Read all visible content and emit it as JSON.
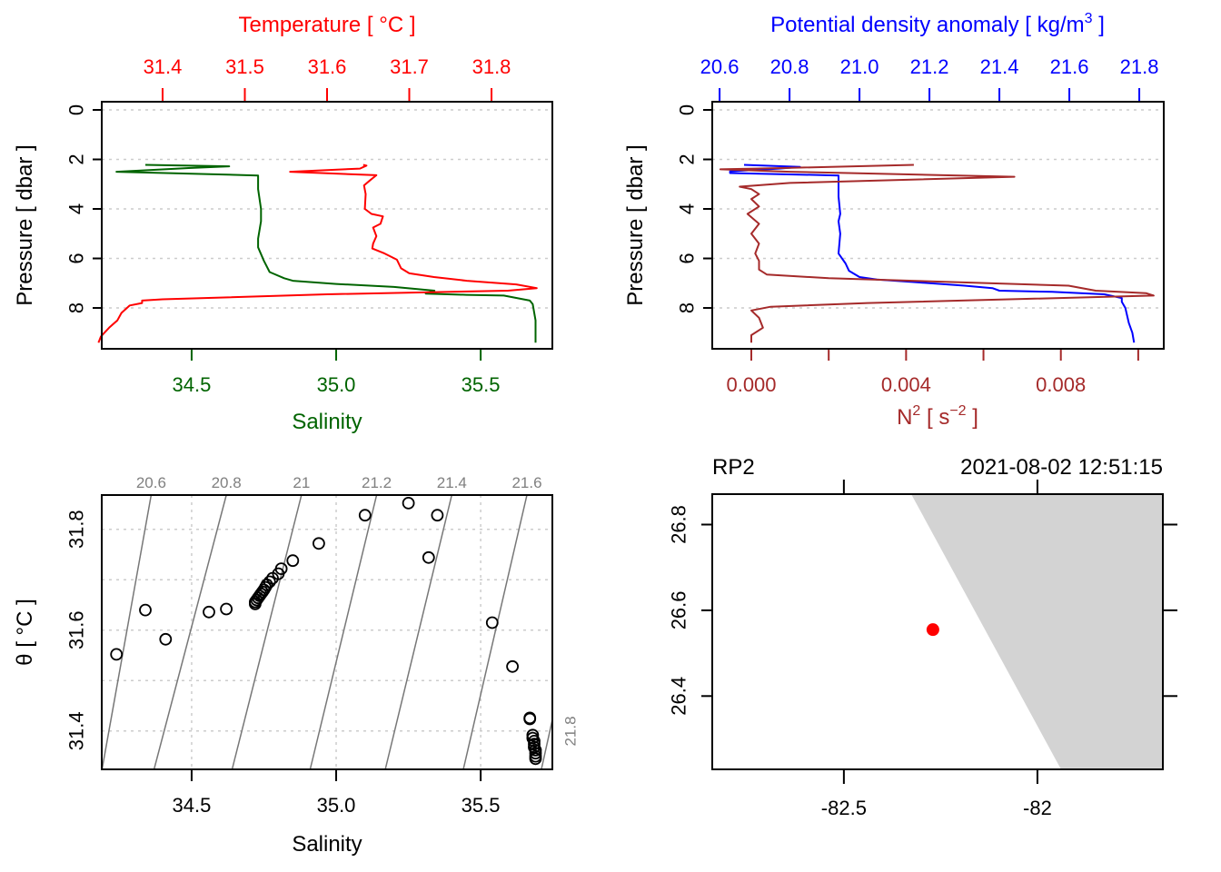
{
  "chart_data": [
    {
      "id": "ts-profile",
      "type": "line",
      "title": "",
      "ylabel": "Pressure [ dbar ]",
      "ylim": [
        9.65,
        -0.33
      ],
      "yticks": [
        0,
        2,
        4,
        6,
        8
      ],
      "grid": "horizontal-dotted",
      "bottom_axis": {
        "label": "Salinity",
        "color": "#006400",
        "lim": [
          34.189,
          35.748
        ],
        "ticks": [
          34.5,
          35.0,
          35.5
        ],
        "tick_labels": [
          "34.5",
          "35.0",
          "35.5"
        ]
      },
      "top_axis": {
        "label": "Temperature [ °C ]",
        "color": "#ff0000",
        "lim": [
          31.326,
          31.874
        ],
        "ticks": [
          31.4,
          31.5,
          31.6,
          31.7,
          31.8
        ],
        "tick_labels": [
          "31.4",
          "31.5",
          "31.6",
          "31.7",
          "31.8"
        ]
      },
      "series": [
        {
          "name": "Salinity",
          "axis": "bottom",
          "color": "#006400",
          "points": [
            [
              34.34,
              2.22
            ],
            [
              34.63,
              2.28
            ],
            [
              34.49,
              2.35
            ],
            [
              34.24,
              2.5
            ],
            [
              34.73,
              2.65
            ],
            [
              34.73,
              3.2
            ],
            [
              34.74,
              4.0
            ],
            [
              34.74,
              4.5
            ],
            [
              34.73,
              5.2
            ],
            [
              34.73,
              5.55
            ],
            [
              34.75,
              6.1
            ],
            [
              34.77,
              6.55
            ],
            [
              34.82,
              6.8
            ],
            [
              34.85,
              6.9
            ],
            [
              35.0,
              7.03
            ],
            [
              35.2,
              7.15
            ],
            [
              35.34,
              7.3
            ],
            [
              35.31,
              7.42
            ],
            [
              35.45,
              7.47
            ],
            [
              35.58,
              7.5
            ],
            [
              35.67,
              7.7
            ],
            [
              35.68,
              7.85
            ],
            [
              35.69,
              8.5
            ],
            [
              35.69,
              9.4
            ]
          ]
        },
        {
          "name": "Temperature",
          "axis": "top",
          "color": "#ff0000",
          "points": [
            [
              31.644,
              2.22
            ],
            [
              31.648,
              2.25
            ],
            [
              31.64,
              2.37
            ],
            [
              31.555,
              2.5
            ],
            [
              31.66,
              2.64
            ],
            [
              31.652,
              2.85
            ],
            [
              31.645,
              3.05
            ],
            [
              31.647,
              3.4
            ],
            [
              31.646,
              4.0
            ],
            [
              31.654,
              4.2
            ],
            [
              31.668,
              4.3
            ],
            [
              31.665,
              4.6
            ],
            [
              31.656,
              4.75
            ],
            [
              31.66,
              5.1
            ],
            [
              31.656,
              5.4
            ],
            [
              31.655,
              5.6
            ],
            [
              31.67,
              5.8
            ],
            [
              31.685,
              6.05
            ],
            [
              31.69,
              6.4
            ],
            [
              31.7,
              6.6
            ],
            [
              31.73,
              6.75
            ],
            [
              31.77,
              6.9
            ],
            [
              31.83,
              7.05
            ],
            [
              31.855,
              7.2
            ],
            [
              31.82,
              7.3
            ],
            [
              31.6,
              7.45
            ],
            [
              31.4,
              7.65
            ],
            [
              31.375,
              7.7
            ],
            [
              31.375,
              7.8
            ],
            [
              31.36,
              7.9
            ],
            [
              31.35,
              8.2
            ],
            [
              31.345,
              8.5
            ],
            [
              31.335,
              8.8
            ],
            [
              31.325,
              9.15
            ],
            [
              31.322,
              9.4
            ]
          ]
        }
      ]
    },
    {
      "id": "density-n2-profile",
      "type": "line",
      "title": "",
      "ylabel": "Pressure [ dbar ]",
      "ylim": [
        9.65,
        -0.33
      ],
      "yticks": [
        0,
        2,
        4,
        6,
        8
      ],
      "grid": "horizontal-dotted",
      "bottom_axis": {
        "label": "N² [ s⁻² ]",
        "label_main": "N",
        "label_sup": "2",
        "label_mid": " [ s",
        "label_sup2": "−2",
        "label_end": " ]",
        "color": "#a52a2a",
        "lim": [
          -0.00101,
          0.01066
        ],
        "ticks": [
          0.0,
          0.002,
          0.004,
          0.006,
          0.008,
          0.01
        ],
        "tick_labels": [
          "0.000",
          "",
          "0.004",
          "",
          "0.008",
          ""
        ]
      },
      "top_axis": {
        "label": "Potential density anomaly [ kg/m³ ]",
        "label_main": "Potential density anomaly [ kg/m",
        "label_sup": "3",
        "label_end": " ]",
        "color": "#0000ff",
        "lim": [
          20.579,
          21.87
        ],
        "ticks": [
          20.6,
          20.8,
          21.0,
          21.2,
          21.4,
          21.6,
          21.8
        ],
        "tick_labels": [
          "20.6",
          "20.8",
          "21.0",
          "21.2",
          "21.4",
          "21.6",
          "21.8"
        ]
      },
      "series": [
        {
          "name": "Potential density anomaly",
          "axis": "top",
          "color": "#0000ff",
          "points": [
            [
              20.67,
              2.22
            ],
            [
              20.83,
              2.3
            ],
            [
              20.77,
              2.37
            ],
            [
              20.63,
              2.48
            ],
            [
              20.63,
              2.55
            ],
            [
              20.94,
              2.65
            ],
            [
              20.94,
              3.5
            ],
            [
              20.945,
              4.2
            ],
            [
              20.94,
              4.5
            ],
            [
              20.945,
              5.0
            ],
            [
              20.94,
              5.8
            ],
            [
              20.96,
              6.2
            ],
            [
              20.97,
              6.5
            ],
            [
              21.0,
              6.75
            ],
            [
              21.05,
              6.85
            ],
            [
              21.15,
              6.95
            ],
            [
              21.3,
              7.1
            ],
            [
              21.38,
              7.2
            ],
            [
              21.4,
              7.3
            ],
            [
              21.55,
              7.35
            ],
            [
              21.7,
              7.45
            ],
            [
              21.75,
              7.6
            ],
            [
              21.75,
              7.75
            ],
            [
              21.76,
              8.0
            ],
            [
              21.77,
              8.6
            ],
            [
              21.78,
              9.0
            ],
            [
              21.785,
              9.4
            ]
          ]
        },
        {
          "name": "N2",
          "axis": "bottom",
          "color": "#a52a2a",
          "points": [
            [
              0.0042,
              2.22
            ],
            [
              0.0008,
              2.35
            ],
            [
              -0.0008,
              2.4
            ],
            [
              0.001,
              2.5
            ],
            [
              0.0068,
              2.7
            ],
            [
              0.001,
              2.95
            ],
            [
              -0.0003,
              3.1
            ],
            [
              0.0,
              3.2
            ],
            [
              0.0002,
              3.4
            ],
            [
              0.0,
              3.6
            ],
            [
              0.0002,
              3.9
            ],
            [
              -0.0001,
              4.2
            ],
            [
              0.0002,
              4.6
            ],
            [
              0.0,
              5.0
            ],
            [
              0.0002,
              5.4
            ],
            [
              0.0001,
              5.8
            ],
            [
              0.0002,
              6.1
            ],
            [
              0.0002,
              6.45
            ],
            [
              0.0004,
              6.65
            ],
            [
              0.002,
              6.8
            ],
            [
              0.0082,
              7.1
            ],
            [
              0.0089,
              7.3
            ],
            [
              0.0102,
              7.4
            ],
            [
              0.0104,
              7.5
            ],
            [
              0.003,
              7.8
            ],
            [
              0.0005,
              7.95
            ],
            [
              0.0,
              8.1
            ],
            [
              0.0002,
              8.4
            ],
            [
              0.0003,
              8.8
            ],
            [
              0.0,
              9.1
            ],
            [
              0.0,
              9.4
            ]
          ]
        }
      ]
    },
    {
      "id": "ts-diagram",
      "type": "scatter",
      "title": "",
      "xlabel": "Salinity",
      "ylabel": "θ [ °C ]",
      "xlim": [
        34.189,
        35.748
      ],
      "ylim": [
        31.324,
        31.868
      ],
      "xticks": [
        34.5,
        35.0,
        35.5
      ],
      "xtick_labels": [
        "34.5",
        "35.0",
        "35.5"
      ],
      "yticks": [
        31.4,
        31.6,
        31.8
      ],
      "ytick_labels": [
        "31.4",
        "31.6",
        "31.8"
      ],
      "grid": "dotted",
      "grid_x": [
        34.5,
        35.0,
        35.5
      ],
      "grid_y": [
        31.4,
        31.5,
        31.6,
        31.7,
        31.8
      ],
      "isopycnals": [
        {
          "sigma": 20.6,
          "label": "20.6",
          "top_s": 34.36,
          "bottom_s": 34.19,
          "bottom_theta": 31.5
        },
        {
          "sigma": 20.8,
          "label": "20.8",
          "top_s": 34.62,
          "bottom_s": 34.37
        },
        {
          "sigma": 21.0,
          "label": "21",
          "top_s": 34.88,
          "bottom_s": 34.64
        },
        {
          "sigma": 21.2,
          "label": "21.2",
          "top_s": 35.14,
          "bottom_s": 34.91
        },
        {
          "sigma": 21.4,
          "label": "21.4",
          "top_s": 35.4,
          "bottom_s": 35.17
        },
        {
          "sigma": 21.6,
          "label": "21.6",
          "top_s": 35.66,
          "bottom_s": 35.44
        },
        {
          "sigma": 21.8,
          "label": "21.8",
          "top_s": 35.92,
          "bottom_s": 35.71
        }
      ],
      "isopycnal_color": "#777777",
      "points": [
        [
          34.24,
          31.552
        ],
        [
          34.34,
          31.64
        ],
        [
          34.41,
          31.582
        ],
        [
          34.56,
          31.636
        ],
        [
          34.62,
          31.642
        ],
        [
          34.72,
          31.652
        ],
        [
          34.72,
          31.656
        ],
        [
          34.725,
          31.66
        ],
        [
          34.73,
          31.664
        ],
        [
          34.735,
          31.668
        ],
        [
          34.74,
          31.672
        ],
        [
          34.745,
          31.676
        ],
        [
          34.75,
          31.68
        ],
        [
          34.755,
          31.685
        ],
        [
          34.76,
          31.69
        ],
        [
          34.77,
          31.696
        ],
        [
          34.78,
          31.703
        ],
        [
          34.8,
          31.712
        ],
        [
          34.81,
          31.722
        ],
        [
          34.85,
          31.738
        ],
        [
          34.94,
          31.772
        ],
        [
          35.1,
          31.828
        ],
        [
          35.25,
          31.852
        ],
        [
          35.35,
          31.828
        ],
        [
          35.32,
          31.744
        ],
        [
          35.54,
          31.615
        ],
        [
          35.61,
          31.528
        ],
        [
          35.67,
          31.426
        ],
        [
          35.67,
          31.424
        ],
        [
          35.68,
          31.392
        ],
        [
          35.68,
          31.386
        ],
        [
          35.685,
          31.38
        ],
        [
          35.685,
          31.374
        ],
        [
          35.685,
          31.368
        ],
        [
          35.69,
          31.362
        ],
        [
          35.69,
          31.356
        ],
        [
          35.69,
          31.35
        ],
        [
          35.69,
          31.345
        ]
      ]
    },
    {
      "id": "station-map",
      "type": "scatter",
      "title": "RP2",
      "subtitle": "2021-08-02 12:51:15",
      "xlim": [
        -82.84,
        -81.676
      ],
      "ylim": [
        26.229,
        26.871
      ],
      "xticks": [
        -82.5,
        -82.0
      ],
      "xtick_labels": [
        "-82.5",
        "-82"
      ],
      "yticks": [
        26.4,
        26.6,
        26.8
      ],
      "ytick_labels": [
        "26.4",
        "26.6",
        "26.8"
      ],
      "land_color": "#d3d3d3",
      "coastline": [
        [
          -82.326,
          26.871
        ],
        [
          -81.939,
          26.229
        ]
      ],
      "station": {
        "lon": -82.27,
        "lat": 26.555,
        "color": "#ff0000"
      }
    }
  ]
}
